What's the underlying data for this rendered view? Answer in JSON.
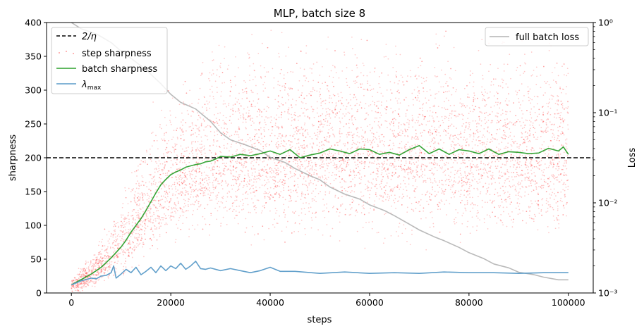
{
  "chart_data": {
    "type": "line",
    "title": "MLP, batch size 8",
    "xlabel": "steps",
    "ylabel": "sharpness",
    "y2label": "Loss",
    "xlim": [
      -5000,
      105000
    ],
    "ylim": [
      0,
      400
    ],
    "y2lim": [
      0.001,
      1
    ],
    "y2scale": "log",
    "xticks": [
      0,
      20000,
      40000,
      60000,
      80000,
      100000
    ],
    "xtick_labels": [
      "0",
      "20000",
      "40000",
      "60000",
      "80000",
      "100000"
    ],
    "yticks": [
      0,
      50,
      100,
      150,
      200,
      250,
      300,
      350,
      400
    ],
    "ytick_labels": [
      "0",
      "50",
      "100",
      "150",
      "200",
      "250",
      "300",
      "350",
      "400"
    ],
    "y2ticks": [
      0.001,
      0.01,
      0.1,
      1
    ],
    "y2tick_labels": [
      "10⁻³",
      "10⁻²",
      "10⁻¹",
      "10⁰"
    ],
    "threshold": {
      "name": "2/η",
      "value": 200,
      "color": "#000000"
    },
    "legend_left": {
      "placement": "upper-left",
      "entries": [
        {
          "label": "2/η",
          "style": "dashed",
          "color": "#000000"
        },
        {
          "label": "step sharpness",
          "style": "dots",
          "color": "#ff0000"
        },
        {
          "label": "batch sharpness",
          "style": "line",
          "color": "#2ca02c"
        },
        {
          "label": "λmax",
          "label_main": "λ",
          "label_sub": "max",
          "style": "line",
          "color": "#5a9bc8"
        }
      ]
    },
    "legend_right": {
      "placement": "upper-right",
      "entries": [
        {
          "label": "full batch loss",
          "style": "line",
          "color": "#b3b3b3"
        }
      ]
    },
    "series": [
      {
        "name": "full batch loss",
        "axis": "right",
        "color": "#b3b3b3",
        "x": [
          0,
          2000,
          5000,
          8000,
          10000,
          12000,
          15000,
          18000,
          20000,
          22000,
          25000,
          28000,
          30000,
          32000,
          35000,
          38000,
          40000,
          43000,
          45000,
          48000,
          50000,
          52000,
          55000,
          58000,
          60000,
          63000,
          65000,
          68000,
          70000,
          73000,
          75000,
          78000,
          80000,
          83000,
          85000,
          88000,
          90000,
          93000,
          95000,
          98000,
          100000
        ],
        "values": [
          1.0,
          0.85,
          0.75,
          0.6,
          0.48,
          0.4,
          0.3,
          0.21,
          0.16,
          0.13,
          0.11,
          0.08,
          0.06,
          0.05,
          0.044,
          0.038,
          0.032,
          0.028,
          0.024,
          0.02,
          0.018,
          0.015,
          0.0125,
          0.011,
          0.0095,
          0.0082,
          0.0072,
          0.0058,
          0.005,
          0.0042,
          0.0038,
          0.0032,
          0.0028,
          0.0024,
          0.0021,
          0.0019,
          0.0017,
          0.0016,
          0.0015,
          0.0014,
          0.0014
        ]
      },
      {
        "name": "batch sharpness",
        "axis": "left",
        "color": "#2ca02c",
        "x": [
          0,
          1000,
          2000,
          3000,
          4000,
          5000,
          6000,
          7000,
          8000,
          9000,
          10000,
          11000,
          12000,
          13000,
          14000,
          15000,
          16000,
          17000,
          18000,
          19000,
          20000,
          21000,
          22000,
          23000,
          24000,
          25000,
          26000,
          27000,
          28000,
          29000,
          30000,
          32000,
          34000,
          36000,
          38000,
          40000,
          42000,
          44000,
          46000,
          48000,
          50000,
          52000,
          54000,
          56000,
          58000,
          60000,
          62000,
          64000,
          66000,
          68000,
          70000,
          72000,
          74000,
          76000,
          78000,
          80000,
          82000,
          84000,
          86000,
          88000,
          90000,
          92000,
          94000,
          96000,
          98000,
          99000,
          100000
        ],
        "values": [
          12,
          16,
          20,
          24,
          28,
          33,
          38,
          45,
          52,
          60,
          68,
          78,
          90,
          100,
          110,
          122,
          135,
          148,
          160,
          168,
          175,
          179,
          182,
          186,
          188,
          190,
          191,
          194,
          195,
          198,
          202,
          201,
          205,
          203,
          206,
          210,
          205,
          212,
          200,
          204,
          207,
          213,
          210,
          206,
          213,
          212,
          205,
          208,
          204,
          212,
          218,
          206,
          213,
          205,
          212,
          210,
          206,
          213,
          205,
          209,
          208,
          206,
          207,
          214,
          210,
          216,
          205
        ]
      },
      {
        "name": "λmax",
        "axis": "left",
        "color": "#5a9bc8",
        "x": [
          0,
          1000,
          2000,
          3000,
          4000,
          5000,
          6000,
          7000,
          8000,
          8500,
          9000,
          10000,
          11000,
          12000,
          13000,
          14000,
          15000,
          16000,
          17000,
          18000,
          19000,
          20000,
          21000,
          22000,
          23000,
          24000,
          25000,
          26000,
          27000,
          28000,
          30000,
          32000,
          34000,
          36000,
          38000,
          40000,
          42000,
          45000,
          50000,
          55000,
          60000,
          65000,
          70000,
          75000,
          80000,
          85000,
          90000,
          95000,
          100000
        ],
        "values": [
          12,
          15,
          18,
          20,
          22,
          21,
          25,
          26,
          30,
          40,
          22,
          28,
          35,
          30,
          38,
          27,
          32,
          38,
          30,
          40,
          33,
          40,
          36,
          44,
          35,
          40,
          47,
          36,
          35,
          37,
          33,
          36,
          33,
          30,
          33,
          38,
          32,
          32,
          29,
          31,
          29,
          30,
          29,
          31,
          30,
          30,
          29,
          30,
          30
        ]
      }
    ],
    "scatter": {
      "name": "step sharpness",
      "color": "#ff0000",
      "point_count": 6500,
      "envelope": {
        "x": [
          0,
          5000,
          10000,
          15000,
          20000,
          25000,
          30000,
          40000,
          60000,
          80000,
          100000
        ],
        "low": [
          0,
          5,
          20,
          45,
          70,
          80,
          85,
          85,
          80,
          80,
          75
        ],
        "center": [
          10,
          35,
          70,
          120,
          165,
          185,
          200,
          205,
          210,
          205,
          205
        ],
        "high": [
          25,
          70,
          150,
          260,
          330,
          360,
          400,
          400,
          400,
          400,
          400
        ]
      }
    }
  }
}
